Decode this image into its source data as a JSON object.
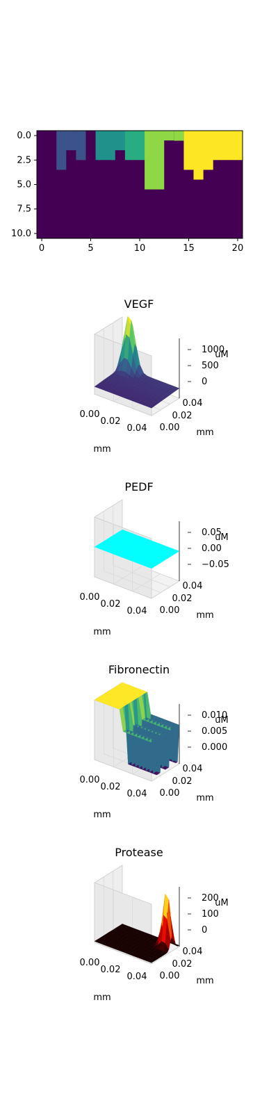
{
  "chart_data": [
    {
      "type": "heatmap",
      "colormap": "viridis",
      "xticks": [
        "0",
        "5",
        "10",
        "15",
        "20"
      ],
      "yticks": [
        "0.0",
        "2.5",
        "5.0",
        "7.5",
        "10.0"
      ],
      "xlim": [
        -0.5,
        20.5
      ],
      "ylim": [
        10.5,
        -0.5
      ],
      "rows": 11,
      "cols": 21,
      "columns": [
        {
          "col": 2,
          "depth": 4,
          "level": 0.2
        },
        {
          "col": 3,
          "depth": 2,
          "level": 0.2
        },
        {
          "col": 4,
          "depth": 3,
          "level": 0.2
        },
        {
          "col": 6,
          "depth": 3,
          "level": 0.4
        },
        {
          "col": 7,
          "depth": 3,
          "level": 0.4
        },
        {
          "col": 8,
          "depth": 2,
          "level": 0.4
        },
        {
          "col": 9,
          "depth": 3,
          "level": 0.6
        },
        {
          "col": 10,
          "depth": 3,
          "level": 0.6
        },
        {
          "col": 11,
          "depth": 6,
          "level": 0.8
        },
        {
          "col": 12,
          "depth": 6,
          "level": 0.8
        },
        {
          "col": 13,
          "depth": 1,
          "level": 0.8
        },
        {
          "col": 15,
          "depth": 4,
          "level": 1.0
        },
        {
          "col": 16,
          "depth": 5,
          "level": 1.0
        },
        {
          "col": 17,
          "depth": 4,
          "level": 1.0
        },
        {
          "col": 18,
          "depth": 3,
          "level": 1.0
        },
        {
          "col": 19,
          "depth": 3,
          "level": 1.0
        },
        {
          "col": 20,
          "depth": 3,
          "level": 1.0
        }
      ]
    },
    {
      "type": "surface",
      "title": "VEGF",
      "xlabel": "mm",
      "ylabel": "mm",
      "zlabel": "uM",
      "xticks": [
        "0.00",
        "0.02",
        "0.04"
      ],
      "yticks": [
        "0.00",
        "0.02",
        "0.04"
      ],
      "zticks": [
        "0",
        "500",
        "1000"
      ],
      "zlim": [
        0,
        1200
      ],
      "colormap": "viridis",
      "peak": 1150
    },
    {
      "type": "surface",
      "title": "PEDF",
      "xlabel": "mm",
      "ylabel": "mm",
      "zlabel": "uM",
      "xticks": [
        "0.00",
        "0.02",
        "0.04"
      ],
      "yticks": [
        "0.00",
        "0.02",
        "0.04"
      ],
      "zticks": [
        "−0.05",
        "0.00",
        "0.05"
      ],
      "zlim": [
        -0.05,
        0.05
      ],
      "colormap": "cool",
      "value": 0.0
    },
    {
      "type": "surface",
      "title": "Fibronectin",
      "xlabel": "mm",
      "ylabel": "mm",
      "zlabel": "uM",
      "xticks": [
        "0.00",
        "0.02",
        "0.04"
      ],
      "yticks": [
        "0.00",
        "0.02",
        "0.04"
      ],
      "zticks": [
        "0.000",
        "0.005",
        "0.010"
      ],
      "zlim": [
        0,
        0.01
      ],
      "colormap": "viridis",
      "max": 0.01
    },
    {
      "type": "surface",
      "title": "Protease",
      "xlabel": "mm",
      "ylabel": "mm",
      "zlabel": "uM",
      "xticks": [
        "0.00",
        "0.02",
        "0.04"
      ],
      "yticks": [
        "0.00",
        "0.02",
        "0.04"
      ],
      "zticks": [
        "0",
        "100",
        "200"
      ],
      "zlim": [
        0,
        260
      ],
      "colormap": "hot",
      "peak": 250
    }
  ],
  "colors": {
    "viridis_0": "#440154",
    "viridis_02": "#3b528b",
    "viridis_04": "#21918c",
    "viridis_06": "#27ad81",
    "viridis_08": "#8fd744",
    "viridis_10": "#fde725",
    "cyan": "#00ffff",
    "pane": "#f2f2f2",
    "pane_edge": "#cccccc"
  }
}
